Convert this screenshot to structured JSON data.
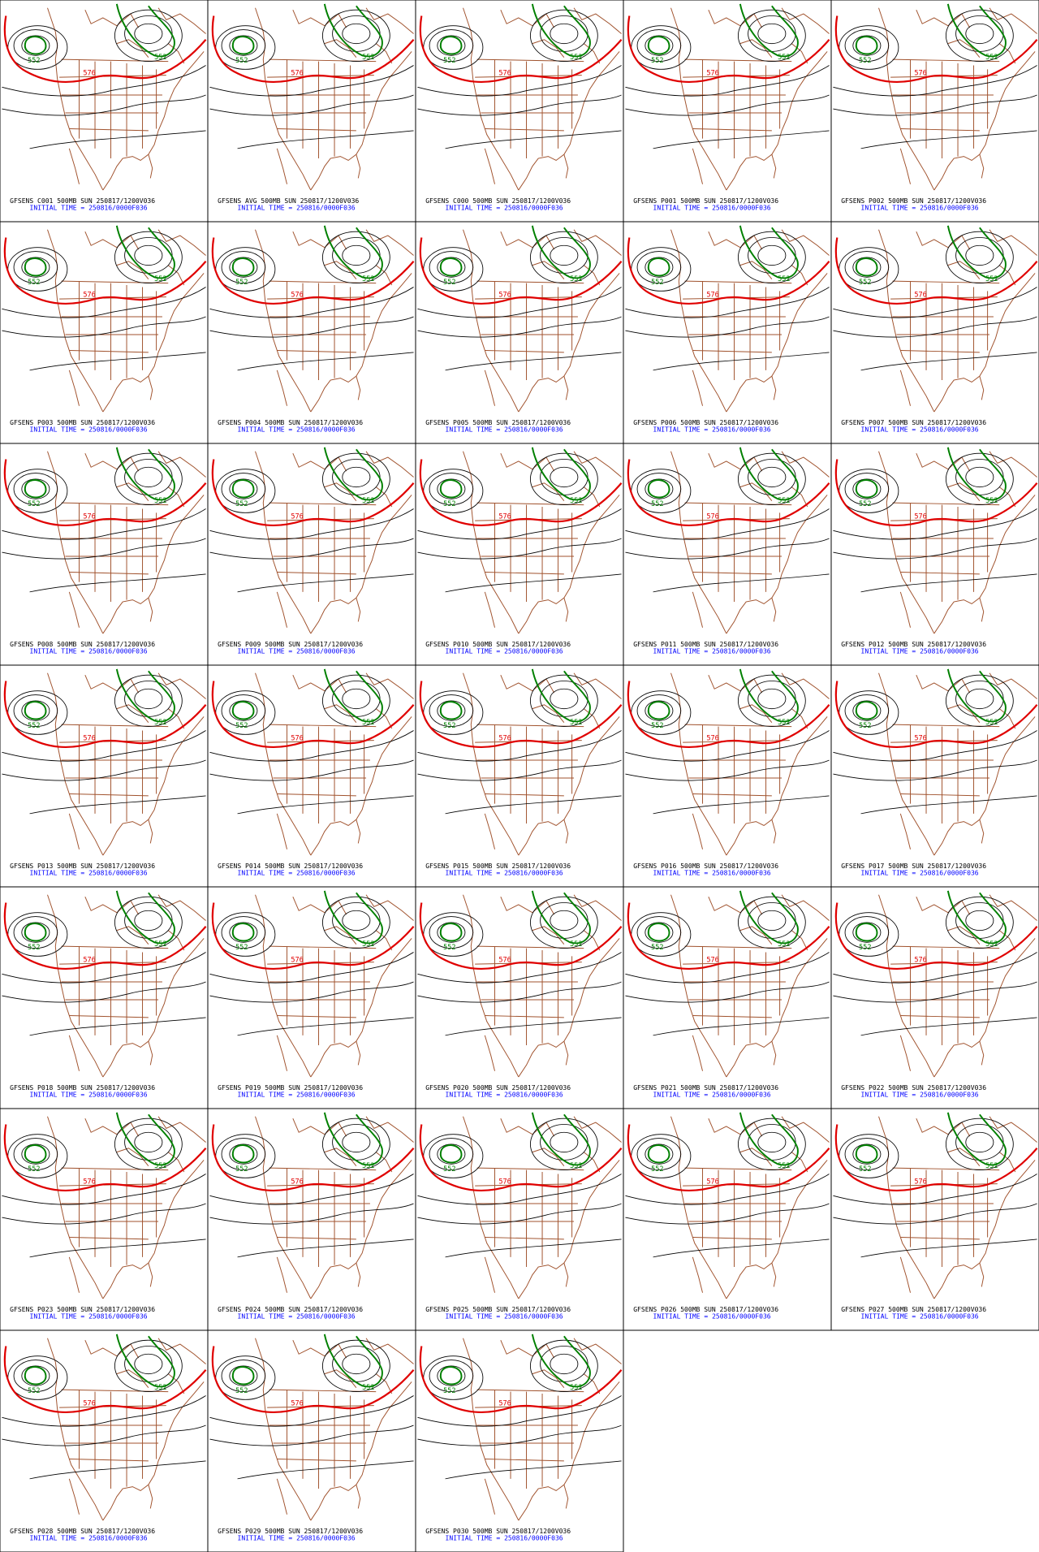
{
  "panels": [
    "GFSENS C001 500MB SUN 250817/1200V036",
    "GFSENS AVG 500MB SUN 250817/1200V036",
    "GFSENS C000 500MB SUN 250817/1200V036",
    "GFSENS P001 500MB SUN 250817/1200V036",
    "GFSENS P002 500MB SUN 250817/1200V036",
    "GFSENS P003 500MB SUN 250817/1200V036",
    "GFSENS P004 500MB SUN 250817/1200V036",
    "GFSENS P005 500MB SUN 250817/1200V036",
    "GFSENS P006 500MB SUN 250817/1200V036",
    "GFSENS P007 500MB SUN 250817/1200V036",
    "GFSENS P008 500MB SUN 250817/1200V036",
    "GFSENS P009 500MB SUN 250817/1200V036",
    "GFSENS P010 500MB SUN 250817/1200V036",
    "GFSENS P011 500MB SUN 250817/1200V036",
    "GFSENS P012 500MB SUN 250817/1200V036",
    "GFSENS P013 500MB SUN 250817/1200V036",
    "GFSENS P014 500MB SUN 250817/1200V036",
    "GFSENS P015 500MB SUN 250817/1200V036",
    "GFSENS P016 500MB SUN 250817/1200V036",
    "GFSENS P017 500MB SUN 250817/1200V036",
    "GFSENS P018 500MB SUN 250817/1200V036",
    "GFSENS P019 500MB SUN 250817/1200V036",
    "GFSENS P020 500MB SUN 250817/1200V036",
    "GFSENS P021 500MB SUN 250817/1200V036",
    "GFSENS P022 500MB SUN 250817/1200V036",
    "GFSENS P023 500MB SUN 250817/1200V036",
    "GFSENS P024 500MB SUN 250817/1200V036",
    "GFSENS P025 500MB SUN 250817/1200V036",
    "GFSENS P026 500MB SUN 250817/1200V036",
    "GFSENS P027 500MB SUN 250817/1200V036",
    "GFSENS P028 500MB SUN 250817/1200V036",
    "GFSENS P029 500MB SUN 250817/1200V036",
    "GFSENS P030 500MB SUN 250817/1200V036"
  ],
  "initial_time": "INITIAL TIME = 250816/0000F036",
  "contour_labels": [
    "552",
    "576"
  ]
}
